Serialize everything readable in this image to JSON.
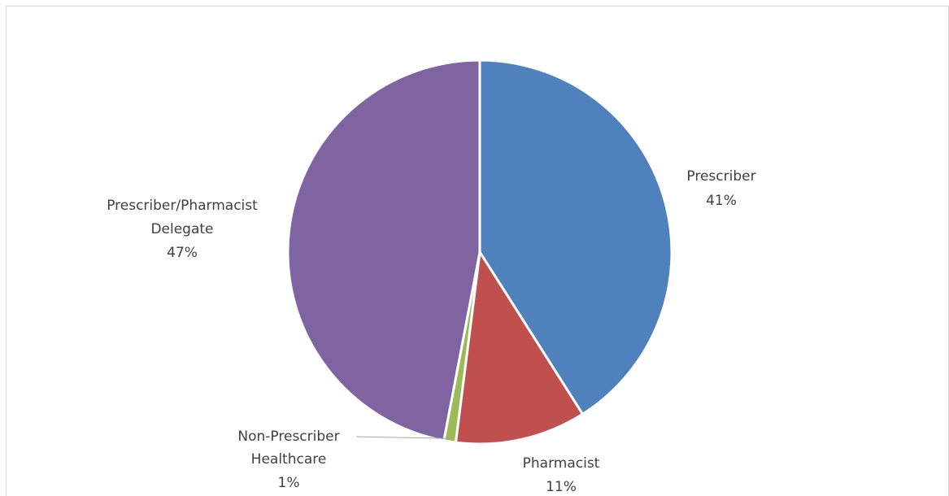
{
  "chart_data": {
    "type": "pie",
    "title": "",
    "legend": "none",
    "slices": [
      {
        "name": "Prescriber",
        "value": 41,
        "percent_label": "41%",
        "color": "#4f81bd"
      },
      {
        "name": "Pharmacist",
        "value": 11,
        "percent_label": "11%",
        "color": "#c0504d"
      },
      {
        "name": "Non-Prescriber Healthcare",
        "value": 1,
        "percent_label": "1%",
        "color": "#9bbb59"
      },
      {
        "name": "Prescriber/Pharmacist Delegate",
        "value": 47,
        "percent_label": "47%",
        "color": "#8064a2"
      }
    ]
  }
}
